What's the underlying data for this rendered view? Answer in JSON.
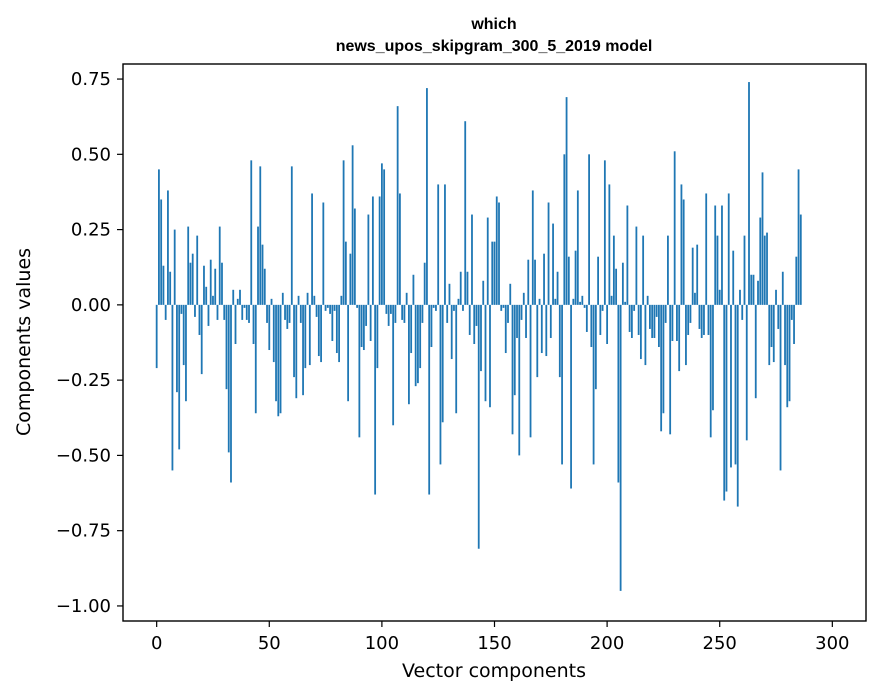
{
  "chart_data": {
    "type": "bar",
    "title_lines": [
      "which",
      "news_upos_skipgram_300_5_2019 model"
    ],
    "xlabel": "Vector components",
    "ylabel": "Components values",
    "xlim": [
      -14.95,
      314.95
    ],
    "ylim": [
      -1.05,
      0.8
    ],
    "x_ticks": [
      0,
      50,
      100,
      150,
      200,
      250,
      300
    ],
    "y_ticks": [
      0.75,
      0.5,
      0.25,
      0.0,
      -0.25,
      -0.5,
      -0.75,
      -1.0
    ],
    "y_tick_labels": [
      "0.75",
      "0.50",
      "0.25",
      "0.00",
      "−0.25",
      "−0.50",
      "−0.75",
      "−1.00"
    ],
    "bar_color": "#1f77b4",
    "grid": false,
    "series": [
      {
        "name": "components",
        "values": [
          -0.21,
          0.45,
          0.35,
          0.13,
          -0.05,
          0.38,
          0.11,
          -0.55,
          0.25,
          -0.29,
          -0.48,
          -0.03,
          -0.2,
          -0.32,
          0.26,
          0.14,
          0.17,
          -0.04,
          0.23,
          -0.1,
          -0.23,
          0.13,
          0.06,
          -0.07,
          0.15,
          0.03,
          0.12,
          -0.05,
          0.26,
          0.14,
          -0.05,
          -0.28,
          -0.49,
          -0.59,
          0.05,
          -0.13,
          0.02,
          0.05,
          -0.05,
          -0.01,
          -0.05,
          -0.06,
          0.48,
          -0.13,
          -0.36,
          0.26,
          0.46,
          0.2,
          0.12,
          -0.06,
          -0.15,
          0.02,
          -0.19,
          -0.32,
          -0.37,
          -0.36,
          0.04,
          -0.05,
          -0.08,
          -0.06,
          0.46,
          -0.24,
          -0.31,
          0.03,
          -0.06,
          -0.3,
          -0.21,
          0.04,
          -0.2,
          0.37,
          0.03,
          -0.04,
          -0.17,
          -0.19,
          0.34,
          -0.02,
          -0.01,
          -0.03,
          -0.12,
          -0.02,
          -0.16,
          -0.19,
          0.03,
          0.48,
          0.21,
          -0.32,
          0.17,
          0.53,
          0.32,
          -0.01,
          -0.44,
          -0.14,
          -0.15,
          -0.07,
          0.3,
          -0.12,
          0.36,
          -0.63,
          -0.21,
          0.36,
          0.47,
          0.45,
          -0.03,
          -0.07,
          -0.03,
          -0.4,
          -0.06,
          0.66,
          0.37,
          -0.05,
          -0.06,
          0.04,
          -0.33,
          -0.16,
          0.1,
          -0.27,
          -0.26,
          -0.21,
          -0.06,
          0.14,
          0.72,
          -0.63,
          -0.14,
          -0.01,
          -0.02,
          0.4,
          -0.53,
          -0.39,
          0.4,
          -0.06,
          0.07,
          -0.18,
          -0.02,
          -0.36,
          0.02,
          0.11,
          -0.02,
          0.61,
          0.11,
          -0.1,
          0.3,
          -0.13,
          -0.07,
          -0.81,
          -0.22,
          0.08,
          -0.32,
          0.29,
          -0.34,
          0.21,
          0.21,
          0.36,
          0.34,
          -0.02,
          -0.01,
          -0.16,
          -0.06,
          0.07,
          -0.43,
          -0.3,
          -0.11,
          -0.5,
          -0.05,
          0.04,
          -0.11,
          0.15,
          -0.44,
          0.38,
          0.15,
          -0.24,
          0.02,
          -0.16,
          0.17,
          -0.17,
          0.34,
          -0.11,
          0.27,
          0.02,
          0.11,
          -0.24,
          -0.53,
          0.5,
          0.69,
          0.16,
          -0.61,
          0.02,
          0.18,
          0.38,
          0.01,
          0.03,
          -0.01,
          -0.09,
          0.5,
          -0.14,
          -0.53,
          -0.28,
          0.16,
          -0.1,
          -0.02,
          0.48,
          -0.13,
          0.4,
          0.03,
          0.23,
          0.12,
          -0.59,
          -0.95,
          0.14,
          0.01,
          0.33,
          -0.09,
          -0.11,
          -0.02,
          0.26,
          -0.1,
          -0.18,
          0.23,
          -0.2,
          0.03,
          -0.08,
          -0.11,
          -0.11,
          -0.04,
          -0.14,
          -0.42,
          -0.36,
          -0.06,
          0.23,
          -0.43,
          -0.12,
          0.51,
          -0.12,
          -0.22,
          0.4,
          0.35,
          -0.2,
          -0.1,
          -0.06,
          0.19,
          0.04,
          0.2,
          -0.08,
          -0.11,
          -0.1,
          0.37,
          -0.1,
          -0.44,
          -0.35,
          0.33,
          0.23,
          0.05,
          0.33,
          -0.65,
          -0.62,
          0.37,
          -0.54,
          0.18,
          -0.53,
          -0.67,
          0.05,
          -0.05,
          0.23,
          -0.45,
          0.74,
          0.1,
          0.1,
          -0.31,
          0.08,
          0.29,
          0.44,
          0.23,
          0.24,
          -0.2,
          -0.14,
          -0.19,
          0.05,
          -0.08,
          -0.55,
          0.11,
          -0.2,
          -0.34,
          -0.32,
          -0.05,
          -0.13,
          0.16,
          0.45,
          0.3
        ]
      }
    ]
  }
}
